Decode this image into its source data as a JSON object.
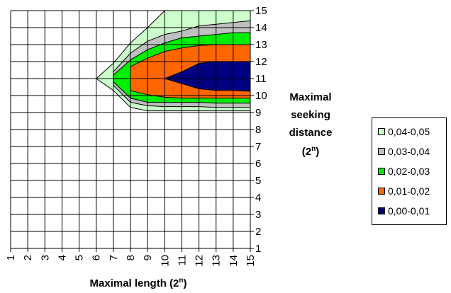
{
  "chart_data": {
    "type": "contour",
    "x": [
      1,
      2,
      3,
      4,
      5,
      6,
      7,
      8,
      9,
      10,
      11,
      12,
      13,
      14,
      15
    ],
    "y": [
      1,
      2,
      3,
      4,
      5,
      6,
      7,
      8,
      9,
      10,
      11,
      12,
      13,
      14,
      15
    ],
    "xlabel": "Maximal length (2",
    "xlabel_sup": "n",
    "xlabel_end": ")",
    "ylabel_lines": [
      "Maximal",
      "seeking",
      "distance"
    ],
    "ylabel_unit": "(2",
    "ylabel_sup": "n",
    "ylabel_end": ")",
    "xlim": [
      1,
      15
    ],
    "ylim": [
      1,
      15
    ],
    "grid": true,
    "legend_position": "right",
    "bands": [
      {
        "name": "0,04-0,05",
        "color": "#ccffcc",
        "y_low": [
          null,
          null,
          null,
          null,
          null,
          11,
          10.3,
          9.3,
          9.1,
          9.1,
          9.1,
          9.1,
          9.1,
          9.1,
          9.1
        ],
        "y_high": [
          null,
          null,
          null,
          null,
          null,
          11,
          11.9,
          13.1,
          14,
          15,
          15,
          15,
          15,
          15,
          15
        ]
      },
      {
        "name": "0,03-0,04",
        "color": "#c0c0c0",
        "y_low": [
          null,
          null,
          null,
          null,
          null,
          null,
          10.6,
          9.6,
          9.4,
          9.35,
          9.35,
          9.35,
          9.3,
          9.3,
          9.3
        ],
        "y_high": [
          null,
          null,
          null,
          null,
          null,
          null,
          11.4,
          12.5,
          13.2,
          13.6,
          13.8,
          14.1,
          14.2,
          14.3,
          14.4
        ]
      },
      {
        "name": "0,02-0,03",
        "color": "#00ee00",
        "y_low": [
          null,
          null,
          null,
          null,
          null,
          null,
          10.8,
          9.85,
          9.6,
          9.6,
          9.6,
          9.6,
          9.55,
          9.55,
          9.55
        ],
        "y_high": [
          null,
          null,
          null,
          null,
          null,
          null,
          11.2,
          12.1,
          12.7,
          13.1,
          13.4,
          13.5,
          13.6,
          13.7,
          13.7
        ]
      },
      {
        "name": "0,01-0,02",
        "color": "#ff6600",
        "y_low": [
          null,
          null,
          null,
          null,
          null,
          null,
          null,
          10.3,
          10.05,
          9.9,
          9.85,
          9.85,
          9.85,
          9.85,
          9.85
        ],
        "y_high": [
          null,
          null,
          null,
          null,
          null,
          null,
          null,
          11.7,
          12.2,
          12.6,
          12.8,
          12.95,
          13,
          13,
          13
        ]
      },
      {
        "name": "0,00-0,01",
        "color": "#000080",
        "y_low": [
          null,
          null,
          null,
          null,
          null,
          null,
          null,
          null,
          null,
          11,
          10.7,
          10.4,
          10.3,
          10.3,
          10.25
        ],
        "y_high": [
          null,
          null,
          null,
          null,
          null,
          null,
          null,
          null,
          null,
          11,
          11.4,
          11.9,
          12,
          12,
          12
        ]
      }
    ]
  }
}
